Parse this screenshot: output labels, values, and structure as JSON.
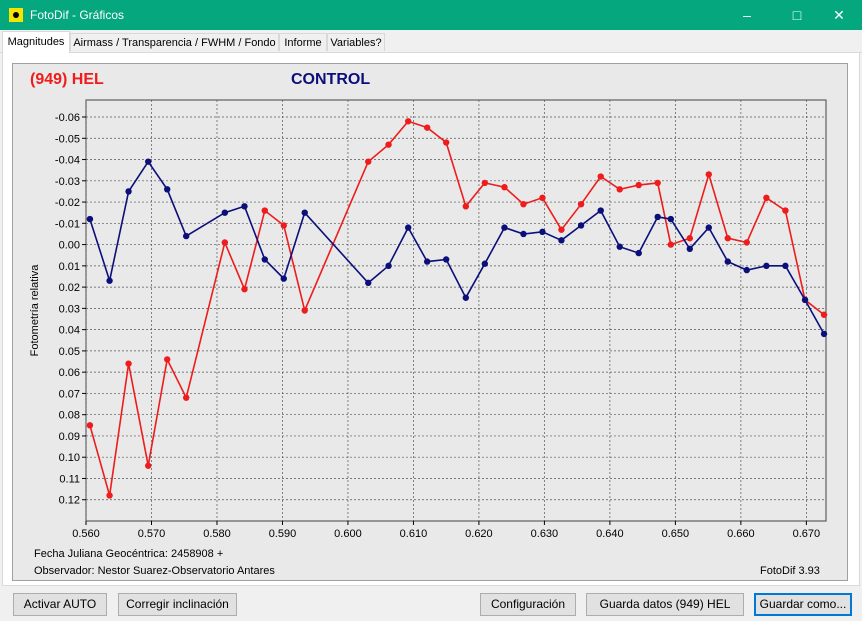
{
  "window": {
    "title": "FotoDif - Gráficos"
  },
  "tabs": [
    {
      "label": "Magnitudes"
    },
    {
      "label": "Airmass / Transparencia / FWHM / Fondo"
    },
    {
      "label": "Informe"
    },
    {
      "label": "Variables?"
    }
  ],
  "chart_labels": {
    "target": "(949) HEL",
    "control": "CONTROL"
  },
  "footer": {
    "date_line": "Fecha Juliana Geocéntrica: 2458908 +",
    "observer_line": "Observador: Nestor Suarez-Observatorio Antares",
    "version": "FotoDif 3.93"
  },
  "buttons": {
    "auto": "Activar AUTO",
    "tilt": "Corregir inclinación",
    "config": "Configuración",
    "save_data": "Guarda datos (949) HEL",
    "save_as": "Guardar como..."
  },
  "colors": {
    "target": "#ee1c1c",
    "control": "#0b0f7a",
    "titlebar": "#05a77f"
  },
  "chart_data": {
    "type": "line",
    "ylabel": "Fotometría relativa",
    "xlabel": "",
    "xlim": [
      0.56,
      0.673
    ],
    "ylim": [
      -0.068,
      0.13
    ],
    "y_inverted": true,
    "grid": true,
    "x_ticks": [
      "0.560",
      "0.570",
      "0.580",
      "0.590",
      "0.600",
      "0.610",
      "0.620",
      "0.630",
      "0.640",
      "0.650",
      "0.660",
      "0.670"
    ],
    "y_ticks": [
      "-0.06",
      "-0.05",
      "-0.04",
      "-0.03",
      "-0.02",
      "-0.01",
      "0.00",
      "0.01",
      "0.02",
      "0.03",
      "0.04",
      "0.05",
      "0.06",
      "0.07",
      "0.08",
      "0.09",
      "0.10",
      "0.11",
      "0.12"
    ],
    "series": [
      {
        "name": "(949) HEL",
        "color": "#ee1c1c",
        "x": [
          0.5606,
          0.5636,
          0.5665,
          0.5695,
          0.5724,
          0.5753,
          0.5812,
          0.5842,
          0.5873,
          0.5902,
          0.5934,
          0.6031,
          0.6062,
          0.6092,
          0.6121,
          0.615,
          0.618,
          0.6209,
          0.6239,
          0.6268,
          0.6297,
          0.6326,
          0.6356,
          0.6386,
          0.6415,
          0.6444,
          0.6473,
          0.6493,
          0.6522,
          0.6551,
          0.658,
          0.6609,
          0.6639,
          0.6668,
          0.6698,
          0.6727
        ],
        "y": [
          0.085,
          0.118,
          0.056,
          0.104,
          0.054,
          0.072,
          -0.001,
          0.021,
          -0.016,
          -0.009,
          0.031,
          -0.039,
          -0.047,
          -0.058,
          -0.055,
          -0.048,
          -0.018,
          -0.029,
          -0.027,
          -0.019,
          -0.022,
          -0.007,
          -0.019,
          -0.032,
          -0.026,
          -0.028,
          -0.029,
          0.0,
          -0.003,
          -0.033,
          -0.003,
          -0.001,
          -0.022,
          -0.016,
          0.026,
          0.033
        ]
      },
      {
        "name": "CONTROL",
        "color": "#0b0f7a",
        "x": [
          0.5606,
          0.5636,
          0.5665,
          0.5695,
          0.5724,
          0.5753,
          0.5812,
          0.5842,
          0.5873,
          0.5902,
          0.5934,
          0.6031,
          0.6062,
          0.6092,
          0.6121,
          0.615,
          0.618,
          0.6209,
          0.6239,
          0.6268,
          0.6297,
          0.6326,
          0.6356,
          0.6386,
          0.6415,
          0.6444,
          0.6473,
          0.6493,
          0.6522,
          0.6551,
          0.658,
          0.6609,
          0.6639,
          0.6668,
          0.6698,
          0.6727
        ],
        "y": [
          -0.012,
          0.017,
          -0.025,
          -0.039,
          -0.026,
          -0.004,
          -0.015,
          -0.018,
          0.007,
          0.016,
          -0.015,
          0.018,
          0.01,
          -0.008,
          0.008,
          0.007,
          0.025,
          0.009,
          -0.008,
          -0.005,
          -0.006,
          -0.002,
          -0.009,
          -0.016,
          0.001,
          0.004,
          -0.013,
          -0.012,
          0.002,
          -0.008,
          0.008,
          0.012,
          0.01,
          0.01,
          0.026,
          0.042
        ]
      }
    ]
  }
}
